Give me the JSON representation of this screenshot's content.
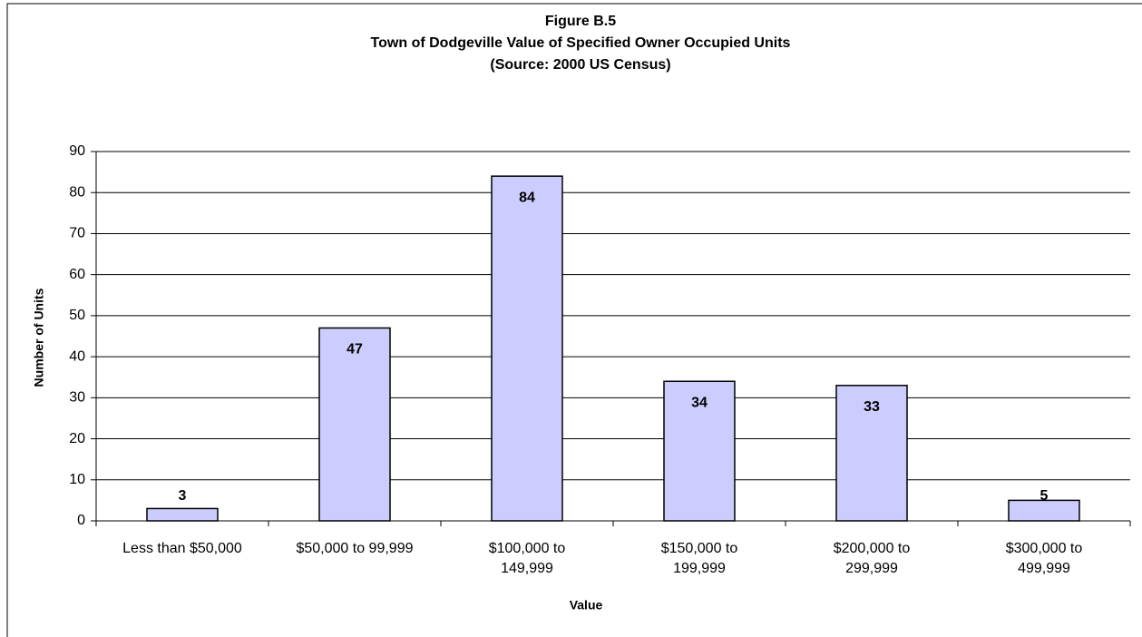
{
  "chart_data": {
    "type": "bar",
    "title": [
      "Figure B.5",
      "Town of  Dodgeville Value of Specified Owner Occupied Units",
      "(Source:  2000 US Census)"
    ],
    "x_label": "Value",
    "y_label": "Number of Units",
    "categories": [
      "Less than $50,000",
      "$50,000 to 99,999",
      "$100,000 to 149,999",
      "$150,000 to 199,999",
      "$200,000 to 299,999",
      "$300,000 to 499,999"
    ],
    "values": [
      3,
      47,
      84,
      34,
      33,
      5
    ],
    "color": "#ccccff",
    "ylim": [
      0,
      90
    ],
    "yticks": [
      0,
      10,
      20,
      30,
      40,
      50,
      60,
      70,
      80,
      90
    ],
    "grid": true
  }
}
